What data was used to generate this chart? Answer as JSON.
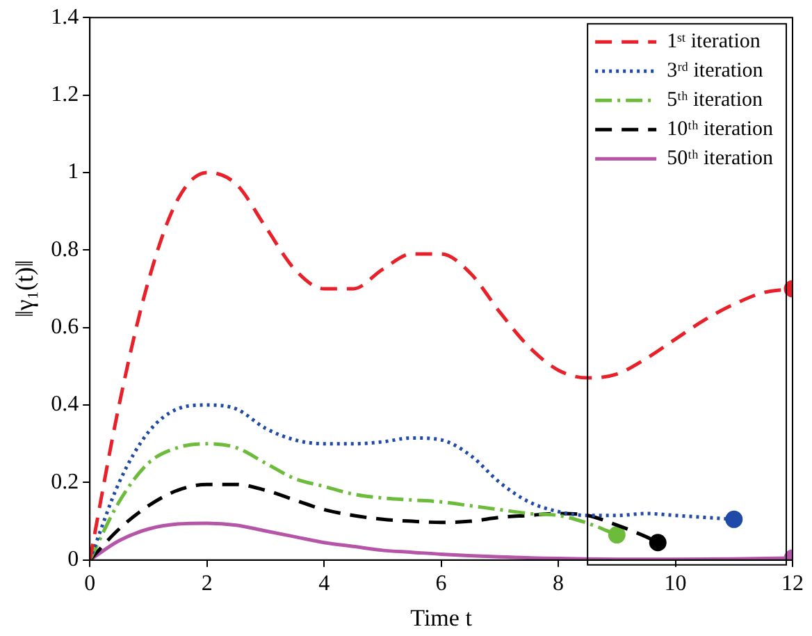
{
  "chart_data": {
    "type": "line",
    "xlabel": "Time t",
    "ylabel": "‖γ₁(t)‖",
    "xlim": [
      0,
      12
    ],
    "xticks": [
      0,
      2,
      4,
      6,
      8,
      10,
      12
    ],
    "ylim": [
      0,
      1.4
    ],
    "yticks": [
      0,
      0.2,
      0.4,
      0.6,
      0.8,
      1,
      1.2,
      1.4
    ],
    "grid": false,
    "legend": "top right",
    "series": [
      {
        "name": "1ˢᵗ iteration",
        "color": "#e8202a",
        "line_style": "dashed",
        "marker": "none",
        "x": [
          0,
          0.5,
          1,
          1.5,
          2,
          2.5,
          3,
          3.5,
          4,
          4.5,
          5,
          5.5,
          6,
          6.5,
          7,
          7.5,
          8,
          8.5,
          9,
          9.5,
          10,
          10.5,
          11,
          11.5,
          12
        ],
        "values": [
          0,
          0.4,
          0.72,
          0.93,
          1.0,
          0.97,
          0.86,
          0.75,
          0.7,
          0.7,
          0.75,
          0.79,
          0.79,
          0.74,
          0.64,
          0.55,
          0.49,
          0.47,
          0.48,
          0.52,
          0.57,
          0.62,
          0.66,
          0.69,
          0.7
        ]
      },
      {
        "name": "3ʳᵈ iteration",
        "color": "#1f4aa8",
        "line_style": "dotted",
        "marker": "none",
        "x": [
          0,
          0.5,
          1,
          1.5,
          2,
          2.5,
          3,
          3.5,
          4,
          4.5,
          5,
          5.5,
          6,
          6.5,
          7,
          7.5,
          8,
          8.5,
          9,
          9.5,
          10,
          10.5,
          11
        ],
        "values": [
          0,
          0.2,
          0.33,
          0.39,
          0.4,
          0.39,
          0.34,
          0.31,
          0.3,
          0.3,
          0.305,
          0.315,
          0.31,
          0.27,
          0.2,
          0.15,
          0.125,
          0.115,
          0.115,
          0.12,
          0.115,
          0.11,
          0.105
        ]
      },
      {
        "name": "5ᵗʰ iteration",
        "color": "#6dbb3a",
        "line_style": "dashdot",
        "marker": "none",
        "x": [
          0,
          0.5,
          1,
          1.5,
          2,
          2.5,
          3,
          3.5,
          4,
          4.5,
          5,
          5.5,
          6,
          6.5,
          7,
          7.5,
          8,
          8.5,
          9
        ],
        "values": [
          0,
          0.15,
          0.25,
          0.29,
          0.3,
          0.29,
          0.25,
          0.21,
          0.19,
          0.17,
          0.16,
          0.155,
          0.15,
          0.14,
          0.13,
          0.12,
          0.115,
          0.095,
          0.065
        ]
      },
      {
        "name": "10ᵗʰ iteration",
        "color": "#000000",
        "line_style": "dashed",
        "marker": "none",
        "x": [
          0,
          0.5,
          1,
          1.5,
          2,
          2.5,
          3,
          3.5,
          4,
          4.5,
          5,
          5.5,
          6,
          6.5,
          7,
          7.5,
          8,
          8.5,
          9,
          9.5,
          9.7
        ],
        "values": [
          0,
          0.08,
          0.14,
          0.18,
          0.195,
          0.195,
          0.18,
          0.155,
          0.13,
          0.115,
          0.105,
          0.1,
          0.097,
          0.1,
          0.11,
          0.115,
          0.12,
          0.115,
          0.09,
          0.06,
          0.045
        ]
      },
      {
        "name": "50ᵗʰ iteration",
        "color": "#b455a8",
        "line_style": "solid",
        "marker": "none",
        "x": [
          0,
          0.5,
          1,
          1.5,
          2,
          2.5,
          3,
          3.5,
          4,
          4.5,
          5,
          5.5,
          6,
          7,
          8,
          9,
          10,
          11,
          12
        ],
        "values": [
          0,
          0.05,
          0.08,
          0.093,
          0.095,
          0.09,
          0.075,
          0.06,
          0.045,
          0.035,
          0.025,
          0.02,
          0.015,
          0.008,
          0.004,
          0.002,
          0.002,
          0.003,
          0.005
        ]
      },
      {
        "type": "scatter",
        "marker": "circle",
        "colors": [
          "#e8202a",
          "#1f4aa8",
          "#6dbb3a",
          "#000000",
          "#b455a8"
        ],
        "x": [
          12,
          11,
          9,
          9.7,
          12
        ],
        "values": [
          0.7,
          0.105,
          0.065,
          0.045,
          0.005
        ]
      }
    ]
  }
}
